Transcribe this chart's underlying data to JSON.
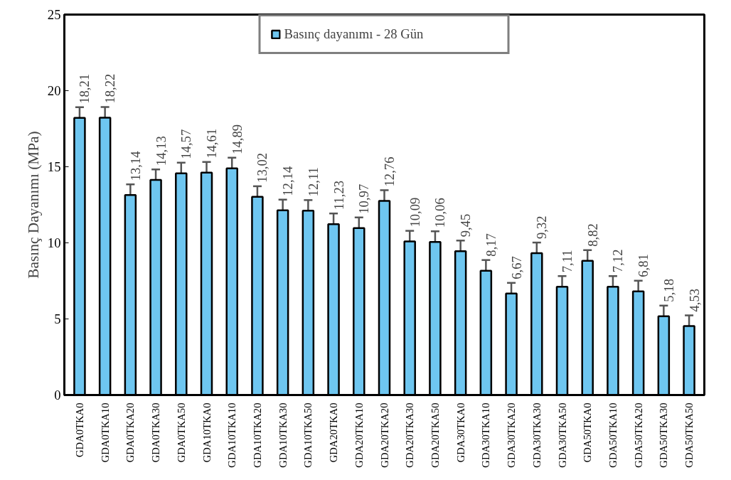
{
  "chart_data": {
    "type": "bar",
    "ylabel": "Basınç Dayanımı (MPa)",
    "categories": [
      "GDA0TKA0",
      "GDA0TKA10",
      "GDA0TKA20",
      "GDA0TKA30",
      "GDA0TKA50",
      "GDA10TKA0",
      "GDA10TKA10",
      "GDA10TKA20",
      "GDA10TKA30",
      "GDA10TKA50",
      "GDA20TKA0",
      "GDA20TKA10",
      "GDA20TKA20",
      "GDA20TKA30",
      "GDA20TKA50",
      "GDA30TKA0",
      "GDA30TKA10",
      "GDA30TKA20",
      "GDA30TKA30",
      "GDA30TKA50",
      "GDA50TKA0",
      "GDA50TKA10",
      "GDA50TKA20",
      "GDA50TKA30",
      "GDA50TKA50"
    ],
    "series": [
      {
        "name": "Basınç dayanımı - 28 Gün",
        "color": "#6ec6f0",
        "values": [
          18.21,
          18.22,
          13.14,
          14.13,
          14.57,
          14.61,
          14.89,
          13.02,
          12.14,
          12.11,
          11.23,
          10.97,
          12.76,
          10.09,
          10.06,
          9.45,
          8.17,
          6.67,
          9.32,
          7.11,
          8.82,
          7.12,
          6.81,
          5.18,
          4.53
        ],
        "errors": [
          0.7,
          0.7,
          0.7,
          0.7,
          0.7,
          0.7,
          0.7,
          0.7,
          0.7,
          0.7,
          0.7,
          0.7,
          0.7,
          0.7,
          0.7,
          0.7,
          0.7,
          0.7,
          0.7,
          0.7,
          0.7,
          0.7,
          0.7,
          0.7,
          0.7
        ],
        "value_labels": [
          "18,21",
          "18,22",
          "13,14",
          "14,13",
          "14,57",
          "14,61",
          "14,89",
          "13,02",
          "12,14",
          "12,11",
          "11,23",
          "10,97",
          "12,76",
          "10,09",
          "10,06",
          "9,45",
          "8,17",
          "6,67",
          "9,32",
          "7,11",
          "8,82",
          "7,12",
          "6,81",
          "5,18",
          "4,53"
        ]
      }
    ],
    "ylim": [
      0,
      25
    ],
    "yticks": [
      0,
      5,
      10,
      15,
      20,
      25
    ],
    "grid": false,
    "legend": "top"
  }
}
